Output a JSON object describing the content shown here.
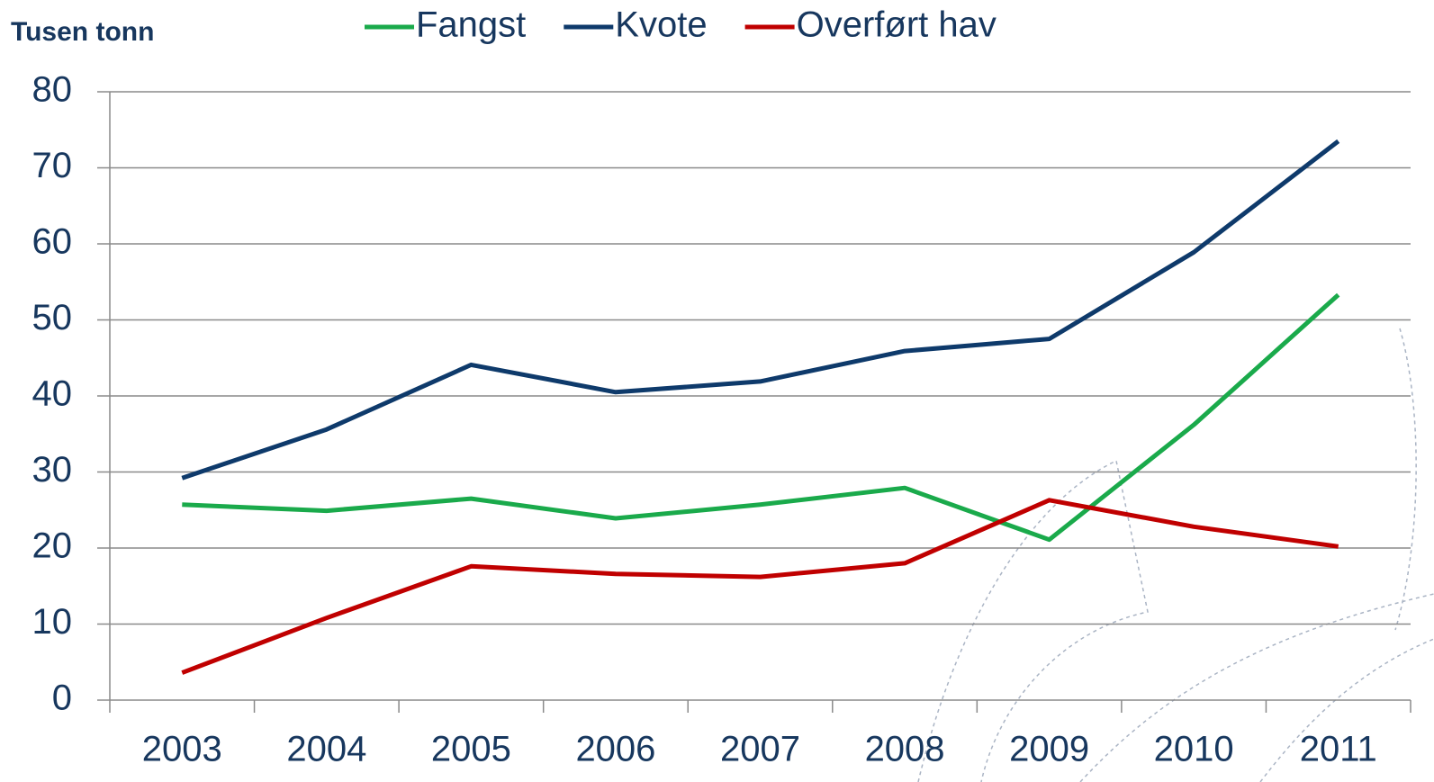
{
  "chart_data": {
    "type": "line",
    "y_axis_label": "Tusen tonn",
    "categories": [
      "2003",
      "2004",
      "2005",
      "2006",
      "2007",
      "2008",
      "2009",
      "2010",
      "2011"
    ],
    "series": [
      {
        "name": "Fangst",
        "color": "#1aaa4b",
        "values": [
          25.7,
          24.9,
          26.5,
          23.9,
          25.7,
          27.9,
          21.1,
          36.2,
          53.3
        ]
      },
      {
        "name": "Kvote",
        "color": "#0e3a6b",
        "values": [
          29.2,
          35.6,
          44.1,
          40.5,
          41.9,
          45.9,
          47.5,
          58.9,
          73.5
        ]
      },
      {
        "name": "Overført hav",
        "color": "#c00000",
        "values": [
          3.6,
          10.8,
          17.6,
          16.6,
          16.2,
          18.0,
          26.3,
          22.8,
          20.2
        ]
      }
    ],
    "ylim": [
      0,
      80
    ],
    "yticks": [
      0,
      10,
      20,
      30,
      40,
      50,
      60,
      70,
      80
    ],
    "grid": true,
    "legend": "top"
  }
}
